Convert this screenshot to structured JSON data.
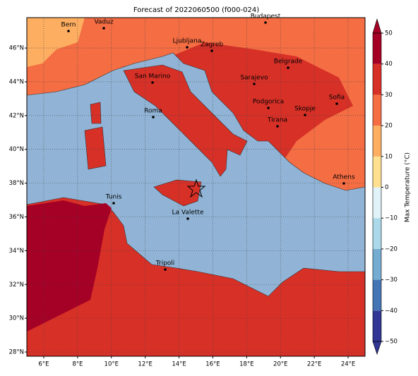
{
  "map": {
    "title": "Forecast of 2022060500 (f000-024)",
    "xlim": [
      5,
      25
    ],
    "ylim": [
      27.75,
      47.8
    ],
    "xticks": [
      {
        "value": 6,
        "label": "6°E"
      },
      {
        "value": 8,
        "label": "8°E"
      },
      {
        "value": 10,
        "label": "10°E"
      },
      {
        "value": 12,
        "label": "12°E"
      },
      {
        "value": 14,
        "label": "14°E"
      },
      {
        "value": 16,
        "label": "16°E"
      },
      {
        "value": 18,
        "label": "18°E"
      },
      {
        "value": 20,
        "label": "20°E"
      },
      {
        "value": 22,
        "label": "22°E"
      },
      {
        "value": 24,
        "label": "24°E"
      }
    ],
    "yticks": [
      {
        "value": 28,
        "label": "28°N"
      },
      {
        "value": 30,
        "label": "30°N"
      },
      {
        "value": 32,
        "label": "32°N"
      },
      {
        "value": 34,
        "label": "34°N"
      },
      {
        "value": 36,
        "label": "36°N"
      },
      {
        "value": 38,
        "label": "38°N"
      },
      {
        "value": 40,
        "label": "40°N"
      },
      {
        "value": 42,
        "label": "42°N"
      },
      {
        "value": 44,
        "label": "44°N"
      },
      {
        "value": 46,
        "label": "46°N"
      }
    ],
    "grid": true,
    "cities": [
      "Bern",
      "Vaduz",
      "Budapest",
      "Ljubljana",
      "Zagreb",
      "Belgrade",
      "San Marino",
      "Sarajevo",
      "Sofia",
      "Podgorica",
      "Skopje",
      "Roma",
      "Tirana",
      "Athens",
      "Tunis",
      "La Valette",
      "Tripoli"
    ],
    "colorbar": {
      "label": "Max Temperature (°C)",
      "lim": [
        -50,
        50
      ],
      "ticks": [
        {
          "value": -50,
          "label": "−50"
        },
        {
          "value": -40,
          "label": "−40"
        },
        {
          "value": -30,
          "label": "−30"
        },
        {
          "value": -20,
          "label": "−20"
        },
        {
          "value": -10,
          "label": "−10"
        },
        0,
        10,
        20,
        30,
        40,
        50
      ],
      "colors": [
        "#313695",
        "#4575b4",
        "#74add1",
        "#abd9e9",
        "#e0f3f8",
        "#fee090",
        "#fdae61",
        "#f46d43",
        "#d73027",
        "#a50026"
      ]
    }
  }
}
